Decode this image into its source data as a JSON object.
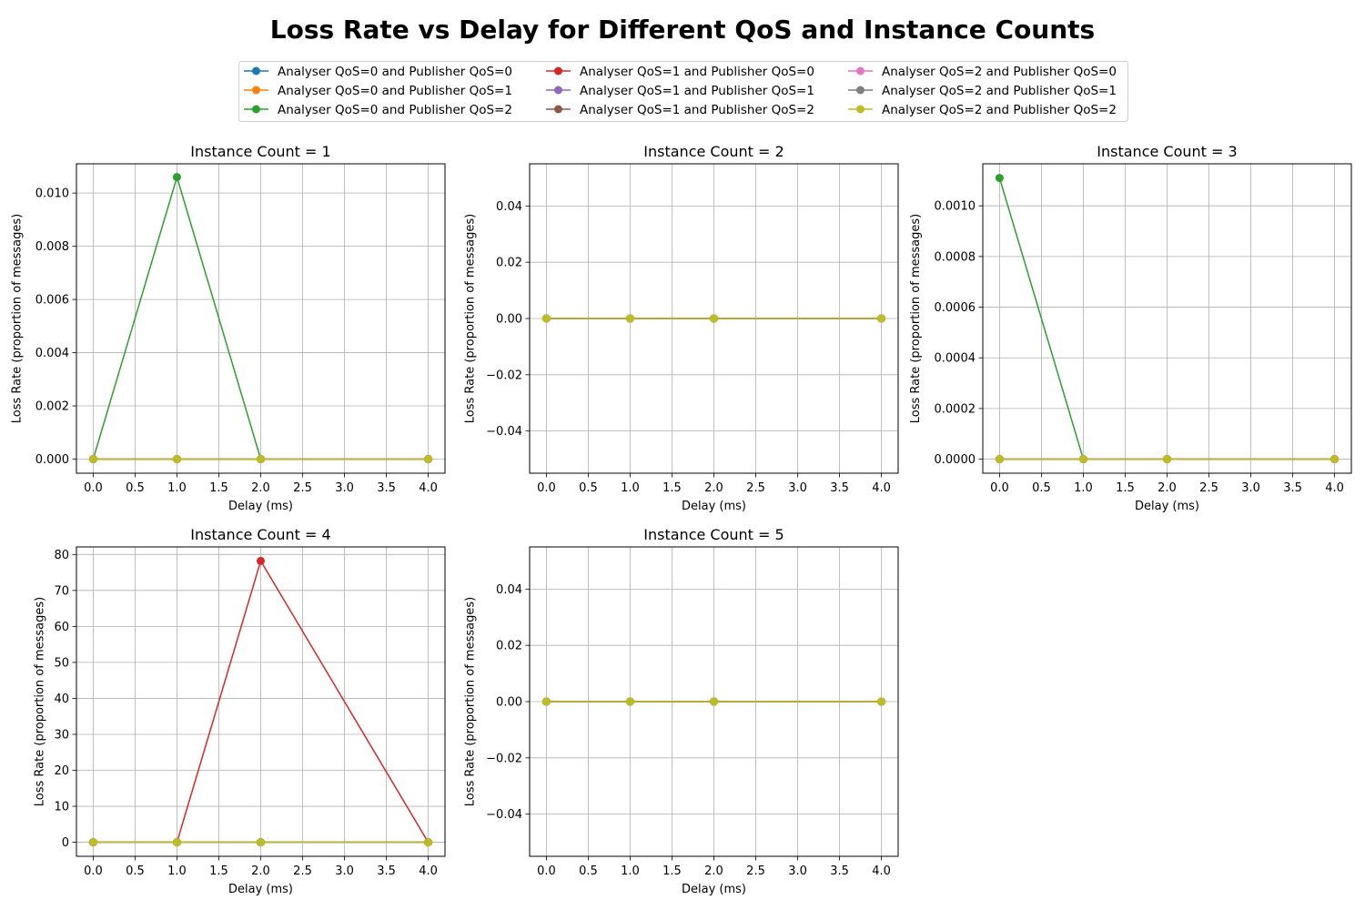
{
  "figure": {
    "title": "Loss Rate vs Delay for Different QoS and Instance Counts"
  },
  "legend": {
    "placement": "upper center",
    "columns": 3,
    "entries": [
      {
        "label": "Analyser QoS=0 and Publisher QoS=0",
        "color": "#1f77b4"
      },
      {
        "label": "Analyser QoS=0 and Publisher QoS=1",
        "color": "#ff7f0e"
      },
      {
        "label": "Analyser QoS=0 and Publisher QoS=2",
        "color": "#2ca02c"
      },
      {
        "label": "Analyser QoS=1 and Publisher QoS=0",
        "color": "#d62728"
      },
      {
        "label": "Analyser QoS=1 and Publisher QoS=1",
        "color": "#9467bd"
      },
      {
        "label": "Analyser QoS=1 and Publisher QoS=2",
        "color": "#8c564b"
      },
      {
        "label": "Analyser QoS=2 and Publisher QoS=0",
        "color": "#e377c2"
      },
      {
        "label": "Analyser QoS=2 and Publisher QoS=1",
        "color": "#7f7f7f"
      },
      {
        "label": "Analyser QoS=2 and Publisher QoS=2",
        "color": "#bcbd22"
      }
    ]
  },
  "chart_data": [
    {
      "type": "line",
      "title": "Instance Count = 1",
      "xlabel": "Delay (ms)",
      "ylabel": "Loss Rate (proportion of messages)",
      "x": [
        0,
        1,
        2,
        4
      ],
      "xlim": [
        -0.2,
        4.2
      ],
      "ylim": [
        -0.00053,
        0.0111
      ],
      "xticks": [
        "0.0",
        "0.5",
        "1.0",
        "1.5",
        "2.0",
        "2.5",
        "3.0",
        "3.5",
        "4.0"
      ],
      "yticks": [
        "0.000",
        "0.002",
        "0.004",
        "0.006",
        "0.008",
        "0.010"
      ],
      "grid": true,
      "series": [
        {
          "name": "Analyser QoS=0 and Publisher QoS=0",
          "values": [
            0,
            0,
            0,
            0
          ]
        },
        {
          "name": "Analyser QoS=0 and Publisher QoS=1",
          "values": [
            0,
            0,
            0,
            0
          ]
        },
        {
          "name": "Analyser QoS=0 and Publisher QoS=2",
          "values": [
            0,
            0.0106,
            0,
            0
          ]
        },
        {
          "name": "Analyser QoS=1 and Publisher QoS=0",
          "values": [
            0,
            0,
            0,
            0
          ]
        },
        {
          "name": "Analyser QoS=1 and Publisher QoS=1",
          "values": [
            0,
            0,
            0,
            0
          ]
        },
        {
          "name": "Analyser QoS=1 and Publisher QoS=2",
          "values": [
            0,
            0,
            0,
            0
          ]
        },
        {
          "name": "Analyser QoS=2 and Publisher QoS=0",
          "values": [
            0,
            0,
            0,
            0
          ]
        },
        {
          "name": "Analyser QoS=2 and Publisher QoS=1",
          "values": [
            0,
            0,
            0,
            0
          ]
        },
        {
          "name": "Analyser QoS=2 and Publisher QoS=2",
          "values": [
            0,
            0,
            0,
            0
          ]
        }
      ]
    },
    {
      "type": "line",
      "title": "Instance Count = 2",
      "xlabel": "Delay (ms)",
      "ylabel": "Loss Rate (proportion of messages)",
      "x": [
        0,
        1,
        2,
        4
      ],
      "xlim": [
        -0.2,
        4.2
      ],
      "ylim": [
        -0.055,
        0.055
      ],
      "xticks": [
        "0.0",
        "0.5",
        "1.0",
        "1.5",
        "2.0",
        "2.5",
        "3.0",
        "3.5",
        "4.0"
      ],
      "yticks": [
        "−0.04",
        "−0.02",
        "0.00",
        "0.02",
        "0.04"
      ],
      "grid": true,
      "series": [
        {
          "name": "Analyser QoS=0 and Publisher QoS=0",
          "values": [
            0,
            0,
            0,
            0
          ]
        },
        {
          "name": "Analyser QoS=0 and Publisher QoS=1",
          "values": [
            0,
            0,
            0,
            0
          ]
        },
        {
          "name": "Analyser QoS=0 and Publisher QoS=2",
          "values": [
            0,
            0,
            0,
            0
          ]
        },
        {
          "name": "Analyser QoS=1 and Publisher QoS=0",
          "values": [
            0,
            0,
            0,
            0
          ]
        },
        {
          "name": "Analyser QoS=1 and Publisher QoS=1",
          "values": [
            0,
            0,
            0,
            0
          ]
        },
        {
          "name": "Analyser QoS=1 and Publisher QoS=2",
          "values": [
            0,
            0,
            0,
            0
          ]
        },
        {
          "name": "Analyser QoS=2 and Publisher QoS=0",
          "values": [
            0,
            0,
            0,
            0
          ]
        },
        {
          "name": "Analyser QoS=2 and Publisher QoS=1",
          "values": [
            0,
            0,
            0,
            0
          ]
        },
        {
          "name": "Analyser QoS=2 and Publisher QoS=2",
          "values": [
            0,
            0,
            0,
            0
          ]
        }
      ]
    },
    {
      "type": "line",
      "title": "Instance Count = 3",
      "xlabel": "Delay (ms)",
      "ylabel": "Loss Rate (proportion of messages)",
      "x": [
        0,
        1,
        2,
        4
      ],
      "xlim": [
        -0.2,
        4.2
      ],
      "ylim": [
        -5.55e-05,
        0.001166
      ],
      "xticks": [
        "0.0",
        "0.5",
        "1.0",
        "1.5",
        "2.0",
        "2.5",
        "3.0",
        "3.5",
        "4.0"
      ],
      "yticks": [
        "0.0000",
        "0.0002",
        "0.0004",
        "0.0006",
        "0.0008",
        "0.0010"
      ],
      "grid": true,
      "series": [
        {
          "name": "Analyser QoS=0 and Publisher QoS=0",
          "values": [
            0,
            0,
            0,
            0
          ]
        },
        {
          "name": "Analyser QoS=0 and Publisher QoS=1",
          "values": [
            0,
            0,
            0,
            0
          ]
        },
        {
          "name": "Analyser QoS=0 and Publisher QoS=2",
          "values": [
            0.00111,
            0,
            0,
            0
          ]
        },
        {
          "name": "Analyser QoS=1 and Publisher QoS=0",
          "values": [
            0,
            0,
            0,
            0
          ]
        },
        {
          "name": "Analyser QoS=1 and Publisher QoS=1",
          "values": [
            0,
            0,
            0,
            0
          ]
        },
        {
          "name": "Analyser QoS=1 and Publisher QoS=2",
          "values": [
            0,
            0,
            0,
            0
          ]
        },
        {
          "name": "Analyser QoS=2 and Publisher QoS=0",
          "values": [
            0,
            0,
            0,
            0
          ]
        },
        {
          "name": "Analyser QoS=2 and Publisher QoS=1",
          "values": [
            0,
            0,
            0,
            0
          ]
        },
        {
          "name": "Analyser QoS=2 and Publisher QoS=2",
          "values": [
            0,
            0,
            0,
            0
          ]
        }
      ]
    },
    {
      "type": "line",
      "title": "Instance Count = 4",
      "xlabel": "Delay (ms)",
      "ylabel": "Loss Rate (proportion of messages)",
      "x": [
        0,
        1,
        2,
        4
      ],
      "xlim": [
        -0.2,
        4.2
      ],
      "ylim": [
        -3.9,
        82.1
      ],
      "xticks": [
        "0.0",
        "0.5",
        "1.0",
        "1.5",
        "2.0",
        "2.5",
        "3.0",
        "3.5",
        "4.0"
      ],
      "yticks": [
        "0",
        "10",
        "20",
        "30",
        "40",
        "50",
        "60",
        "70",
        "80"
      ],
      "grid": true,
      "series": [
        {
          "name": "Analyser QoS=0 and Publisher QoS=0",
          "values": [
            0,
            0,
            0,
            0
          ]
        },
        {
          "name": "Analyser QoS=0 and Publisher QoS=1",
          "values": [
            0,
            0,
            0,
            0
          ]
        },
        {
          "name": "Analyser QoS=0 and Publisher QoS=2",
          "values": [
            0,
            0,
            0,
            0
          ]
        },
        {
          "name": "Analyser QoS=1 and Publisher QoS=0",
          "values": [
            0,
            0,
            78.2,
            0
          ]
        },
        {
          "name": "Analyser QoS=1 and Publisher QoS=1",
          "values": [
            0,
            0,
            0,
            0
          ]
        },
        {
          "name": "Analyser QoS=1 and Publisher QoS=2",
          "values": [
            0,
            0,
            0,
            0
          ]
        },
        {
          "name": "Analyser QoS=2 and Publisher QoS=0",
          "values": [
            0,
            0,
            0,
            0
          ]
        },
        {
          "name": "Analyser QoS=2 and Publisher QoS=1",
          "values": [
            0,
            0,
            0,
            0
          ]
        },
        {
          "name": "Analyser QoS=2 and Publisher QoS=2",
          "values": [
            0,
            0,
            0,
            0
          ]
        }
      ]
    },
    {
      "type": "line",
      "title": "Instance Count = 5",
      "xlabel": "Delay (ms)",
      "ylabel": "Loss Rate (proportion of messages)",
      "x": [
        0,
        1,
        2,
        4
      ],
      "xlim": [
        -0.2,
        4.2
      ],
      "ylim": [
        -0.055,
        0.055
      ],
      "xticks": [
        "0.0",
        "0.5",
        "1.0",
        "1.5",
        "2.0",
        "2.5",
        "3.0",
        "3.5",
        "4.0"
      ],
      "yticks": [
        "−0.04",
        "−0.02",
        "0.00",
        "0.02",
        "0.04"
      ],
      "grid": true,
      "series": [
        {
          "name": "Analyser QoS=0 and Publisher QoS=0",
          "values": [
            0,
            0,
            0,
            0
          ]
        },
        {
          "name": "Analyser QoS=0 and Publisher QoS=1",
          "values": [
            0,
            0,
            0,
            0
          ]
        },
        {
          "name": "Analyser QoS=0 and Publisher QoS=2",
          "values": [
            0,
            0,
            0,
            0
          ]
        },
        {
          "name": "Analyser QoS=1 and Publisher QoS=0",
          "values": [
            0,
            0,
            0,
            0
          ]
        },
        {
          "name": "Analyser QoS=1 and Publisher QoS=1",
          "values": [
            0,
            0,
            0,
            0
          ]
        },
        {
          "name": "Analyser QoS=1 and Publisher QoS=2",
          "values": [
            0,
            0,
            0,
            0
          ]
        },
        {
          "name": "Analyser QoS=2 and Publisher QoS=0",
          "values": [
            0,
            0,
            0,
            0
          ]
        },
        {
          "name": "Analyser QoS=2 and Publisher QoS=1",
          "values": [
            0,
            0,
            0,
            0
          ]
        },
        {
          "name": "Analyser QoS=2 and Publisher QoS=2",
          "values": [
            0,
            0,
            0,
            0
          ]
        }
      ]
    }
  ]
}
